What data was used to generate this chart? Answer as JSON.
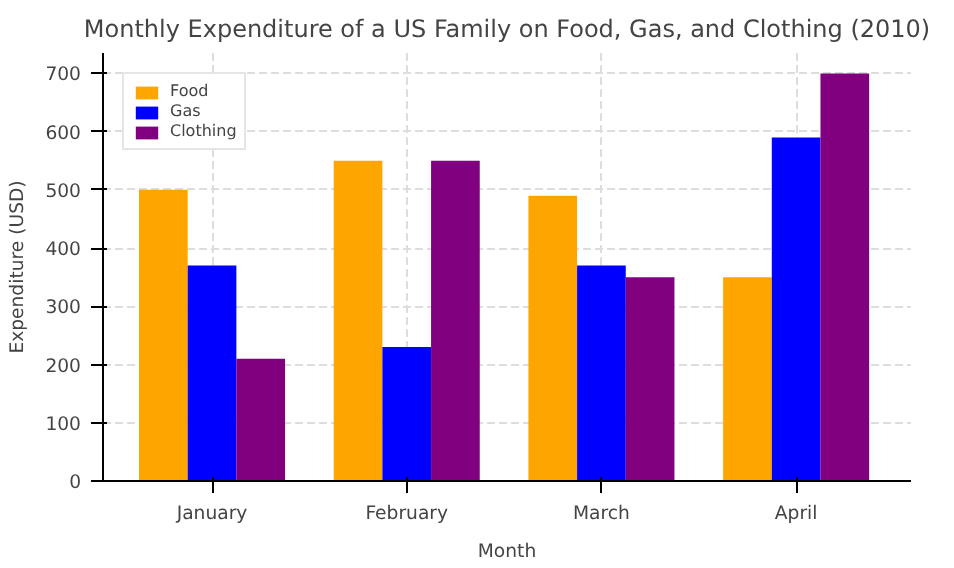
{
  "chart_data": {
    "type": "bar",
    "title": "Monthly Expenditure of a US Family on Food, Gas, and Clothing (2010)",
    "xlabel": "Month",
    "ylabel": "Expenditure (USD)",
    "categories": [
      "January",
      "February",
      "March",
      "April"
    ],
    "series": [
      {
        "name": "Food",
        "color": "#ffa500",
        "values": [
          500,
          550,
          490,
          350
        ]
      },
      {
        "name": "Gas",
        "color": "#0000ff",
        "values": [
          370,
          230,
          370,
          590
        ]
      },
      {
        "name": "Clothing",
        "color": "#800080",
        "values": [
          210,
          550,
          350,
          700
        ]
      }
    ],
    "ylim": [
      0,
      735
    ],
    "yticks": [
      0,
      100,
      200,
      300,
      400,
      500,
      600,
      700
    ],
    "grid": true,
    "legend": "top left"
  }
}
